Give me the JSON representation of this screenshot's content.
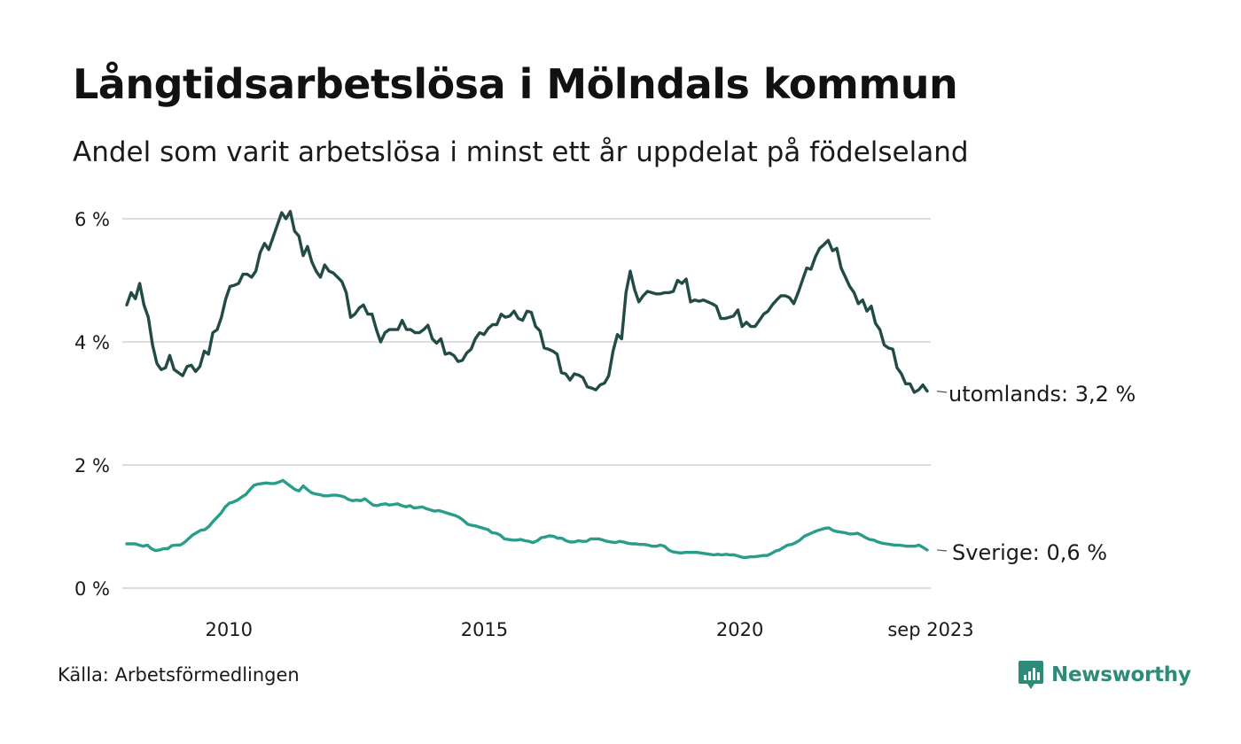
{
  "title": "Långtidsarbetslösa i Mölndals kommun",
  "subtitle": "Andel som varit arbetslösa i minst ett år uppdelat på födelseland",
  "source": "Källa: Arbetsförmedlingen",
  "brand": "Newsworthy",
  "colors": {
    "utomlands": "#234b46",
    "sverige": "#2a9d8a",
    "grid": "#dddddd",
    "brand": "#2e8b7a"
  },
  "chart_data": {
    "type": "line",
    "title": "Långtidsarbetslösa i Mölndals kommun",
    "xlabel": "",
    "ylabel": "",
    "x_start": 2008.0,
    "x_end": 2023.667,
    "xlim": [
      2008.0,
      2023.667
    ],
    "ylim": [
      0,
      6.2
    ],
    "grid": true,
    "y_ticks": [
      {
        "value": 0,
        "label": "0 %"
      },
      {
        "value": 2,
        "label": "2 %"
      },
      {
        "value": 4,
        "label": "4 %"
      },
      {
        "value": 6,
        "label": "6 %"
      }
    ],
    "x_ticks": [
      {
        "value": 2010,
        "label": "2010"
      },
      {
        "value": 2015,
        "label": "2015"
      },
      {
        "value": 2020,
        "label": "2020"
      },
      {
        "value": 2023.667,
        "label": "sep 2023"
      }
    ],
    "series": [
      {
        "name": "utomlands",
        "end_label": "utomlands: 3,2 %",
        "color": "#234b46",
        "values": [
          4.6,
          4.8,
          4.7,
          4.95,
          4.6,
          4.4,
          3.95,
          3.65,
          3.55,
          3.58,
          3.78,
          3.55,
          3.5,
          3.45,
          3.6,
          3.62,
          3.52,
          3.6,
          3.85,
          3.8,
          4.15,
          4.2,
          4.4,
          4.7,
          4.9,
          4.92,
          4.95,
          5.1,
          5.1,
          5.05,
          5.15,
          5.45,
          5.6,
          5.5,
          5.7,
          5.9,
          6.1,
          6.0,
          6.12,
          5.8,
          5.72,
          5.4,
          5.55,
          5.3,
          5.15,
          5.05,
          5.25,
          5.15,
          5.12,
          5.05,
          4.98,
          4.8,
          4.4,
          4.45,
          4.55,
          4.6,
          4.45,
          4.45,
          4.2,
          4.0,
          4.15,
          4.2,
          4.2,
          4.2,
          4.35,
          4.2,
          4.2,
          4.15,
          4.15,
          4.2,
          4.27,
          4.05,
          3.98,
          4.05,
          3.8,
          3.82,
          3.78,
          3.68,
          3.7,
          3.82,
          3.88,
          4.05,
          4.15,
          4.12,
          4.22,
          4.28,
          4.28,
          4.45,
          4.4,
          4.42,
          4.5,
          4.38,
          4.35,
          4.5,
          4.48,
          4.25,
          4.18,
          3.9,
          3.88,
          3.85,
          3.8,
          3.5,
          3.48,
          3.38,
          3.48,
          3.46,
          3.42,
          3.27,
          3.25,
          3.22,
          3.3,
          3.33,
          3.45,
          3.85,
          4.12,
          4.05,
          4.8,
          5.15,
          4.85,
          4.65,
          4.75,
          4.82,
          4.8,
          4.78,
          4.78,
          4.8,
          4.8,
          4.82,
          5.0,
          4.95,
          5.02,
          4.65,
          4.68,
          4.66,
          4.68,
          4.65,
          4.62,
          4.58,
          4.38,
          4.38,
          4.4,
          4.42,
          4.52,
          4.25,
          4.32,
          4.25,
          4.25,
          4.35,
          4.45,
          4.5,
          4.6,
          4.68,
          4.75,
          4.75,
          4.72,
          4.62,
          4.8,
          5.0,
          5.2,
          5.18,
          5.38,
          5.52,
          5.58,
          5.65,
          5.48,
          5.52,
          5.2,
          5.05,
          4.9,
          4.8,
          4.62,
          4.68,
          4.5,
          4.58,
          4.3,
          4.2,
          3.95,
          3.9,
          3.88,
          3.58,
          3.48,
          3.32,
          3.32,
          3.18,
          3.22,
          3.3,
          3.2
        ]
      },
      {
        "name": "Sverige",
        "end_label": "Sverige: 0,6 %",
        "color": "#2a9d8a",
        "values": [
          0.72,
          0.72,
          0.72,
          0.7,
          0.68,
          0.7,
          0.64,
          0.61,
          0.62,
          0.64,
          0.64,
          0.69,
          0.7,
          0.7,
          0.74,
          0.8,
          0.86,
          0.9,
          0.94,
          0.95,
          1.0,
          1.08,
          1.15,
          1.22,
          1.32,
          1.38,
          1.4,
          1.43,
          1.48,
          1.52,
          1.6,
          1.67,
          1.69,
          1.7,
          1.71,
          1.7,
          1.7,
          1.72,
          1.75,
          1.7,
          1.65,
          1.6,
          1.58,
          1.66,
          1.6,
          1.55,
          1.53,
          1.52,
          1.5,
          1.5,
          1.51,
          1.51,
          1.5,
          1.48,
          1.44,
          1.42,
          1.43,
          1.42,
          1.45,
          1.4,
          1.35,
          1.34,
          1.36,
          1.37,
          1.35,
          1.36,
          1.37,
          1.34,
          1.32,
          1.34,
          1.3,
          1.31,
          1.32,
          1.29,
          1.27,
          1.25,
          1.26,
          1.24,
          1.22,
          1.2,
          1.18,
          1.15,
          1.1,
          1.04,
          1.02,
          1.01,
          0.99,
          0.97,
          0.95,
          0.9,
          0.89,
          0.86,
          0.8,
          0.79,
          0.78,
          0.78,
          0.79,
          0.77,
          0.76,
          0.74,
          0.77,
          0.82,
          0.83,
          0.85,
          0.84,
          0.81,
          0.81,
          0.77,
          0.75,
          0.75,
          0.77,
          0.76,
          0.76,
          0.8,
          0.8,
          0.8,
          0.78,
          0.76,
          0.75,
          0.74,
          0.76,
          0.75,
          0.73,
          0.72,
          0.72,
          0.71,
          0.71,
          0.7,
          0.68,
          0.68,
          0.7,
          0.68,
          0.62,
          0.59,
          0.58,
          0.57,
          0.58,
          0.58,
          0.58,
          0.58,
          0.57,
          0.56,
          0.55,
          0.54,
          0.55,
          0.54,
          0.55,
          0.54,
          0.54,
          0.52,
          0.5,
          0.5,
          0.51,
          0.51,
          0.52,
          0.53,
          0.53,
          0.56,
          0.6,
          0.62,
          0.66,
          0.7,
          0.71,
          0.74,
          0.78,
          0.84,
          0.87,
          0.9,
          0.93,
          0.95,
          0.97,
          0.98,
          0.94,
          0.92,
          0.91,
          0.9,
          0.88,
          0.88,
          0.89,
          0.86,
          0.82,
          0.79,
          0.78,
          0.75,
          0.73,
          0.72,
          0.71,
          0.7,
          0.7,
          0.69,
          0.68,
          0.68,
          0.68,
          0.7,
          0.66,
          0.62
        ]
      }
    ]
  }
}
